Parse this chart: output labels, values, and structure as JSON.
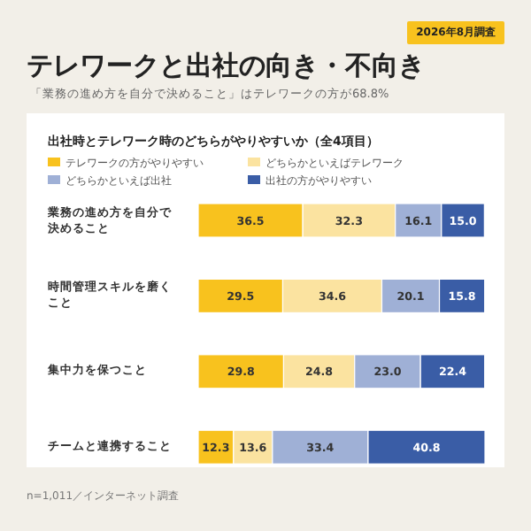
{
  "chart_data": {
    "type": "bar",
    "orientation": "horizontal",
    "stacked": true,
    "legend": "top",
    "title": "テレワークと出社の向き・不向き",
    "subtitle": "「業務の進め方を自分で決めること」はテレワークの方が68.8%",
    "annotations": [
      "2026年8月調査",
      "出社時とテレワーク時のどちらがやりやすいか（全4項目）",
      "n=1,011／インターネット調査"
    ],
    "categories": [
      "業務の進め方を自分で決めること",
      "時間管理スキルを磨くこと",
      "集中力を保つこと",
      "チームと連携すること"
    ],
    "series": [
      {
        "name": "テレワークの方がやりやすい",
        "color": "#f8c21e",
        "values": [
          36.5,
          29.5,
          29.8,
          12.3
        ],
        "value_labels": [
          "36.5",
          "29.5",
          "29.8",
          "12.3"
        ]
      },
      {
        "name": "どちらかといえばテレワーク",
        "color": "#fbe3a0",
        "values": [
          32.3,
          34.6,
          24.8,
          13.6
        ],
        "value_labels": [
          "32.3",
          "34.6",
          "24.8",
          "13.6"
        ]
      },
      {
        "name": "どちらかといえば出社",
        "color": "#9fb0d6",
        "values": [
          16.1,
          20.1,
          23.0,
          33.4
        ],
        "value_labels": [
          "16.1",
          "20.1",
          "23.0",
          "33.4"
        ]
      },
      {
        "name": "出社の方がやりやすい",
        "color": "#3a5da6",
        "values": [
          15.0,
          15.8,
          22.4,
          40.8
        ],
        "value_labels": [
          "15.0",
          "15.8",
          "22.4",
          "40.8"
        ]
      }
    ]
  }
}
